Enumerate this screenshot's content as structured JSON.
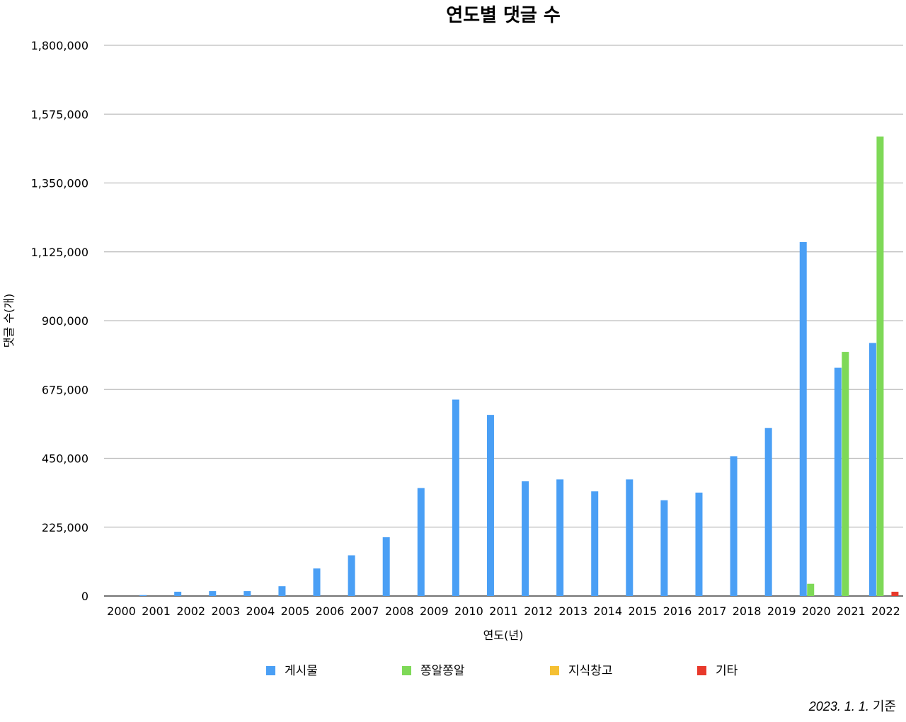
{
  "chart_data": {
    "type": "bar",
    "title": "연도별 댓글 수",
    "xlabel": "연도(년)",
    "ylabel": "댓글 수(개)",
    "ylim": [
      0,
      1800000
    ],
    "yticks": [
      0,
      225000,
      450000,
      675000,
      900000,
      1125000,
      1350000,
      1575000,
      1800000
    ],
    "ytick_labels": [
      "0",
      "225,000",
      "450,000",
      "675,000",
      "900,000",
      "1,125,000",
      "1,350,000",
      "1,575,000",
      "1,800,000"
    ],
    "grid": true,
    "legend_position": "bottom",
    "categories": [
      "2000",
      "2001",
      "2002",
      "2003",
      "2004",
      "2005",
      "2006",
      "2007",
      "2008",
      "2009",
      "2010",
      "2011",
      "2012",
      "2013",
      "2014",
      "2015",
      "2016",
      "2017",
      "2018",
      "2019",
      "2020",
      "2021",
      "2022"
    ],
    "series": [
      {
        "name": "게시물",
        "color": "#4a9ff5",
        "values": [
          0,
          3000,
          14000,
          16000,
          16000,
          32000,
          90000,
          133000,
          192000,
          353000,
          642000,
          592000,
          375000,
          381000,
          342000,
          381000,
          313000,
          338000,
          457000,
          549000,
          1157000,
          746000,
          827000
        ]
      },
      {
        "name": "쫑알쫑알",
        "color": "#7ed957",
        "values": [
          0,
          0,
          0,
          0,
          0,
          0,
          0,
          0,
          0,
          0,
          0,
          0,
          0,
          0,
          0,
          0,
          0,
          0,
          0,
          0,
          40000,
          798000,
          1502000
        ]
      },
      {
        "name": "지식창고",
        "color": "#f5c033",
        "values": [
          0,
          0,
          0,
          0,
          0,
          0,
          0,
          0,
          0,
          0,
          0,
          0,
          0,
          0,
          0,
          0,
          0,
          0,
          0,
          0,
          0,
          0,
          0
        ]
      },
      {
        "name": "기타",
        "color": "#e8392b",
        "values": [
          0,
          0,
          0,
          0,
          0,
          0,
          0,
          0,
          0,
          0,
          0,
          0,
          0,
          0,
          0,
          0,
          0,
          0,
          0,
          0,
          0,
          0,
          14000
        ]
      }
    ]
  },
  "footnote": {
    "date": "2023. 1. 1.",
    "suffix": "기준"
  }
}
